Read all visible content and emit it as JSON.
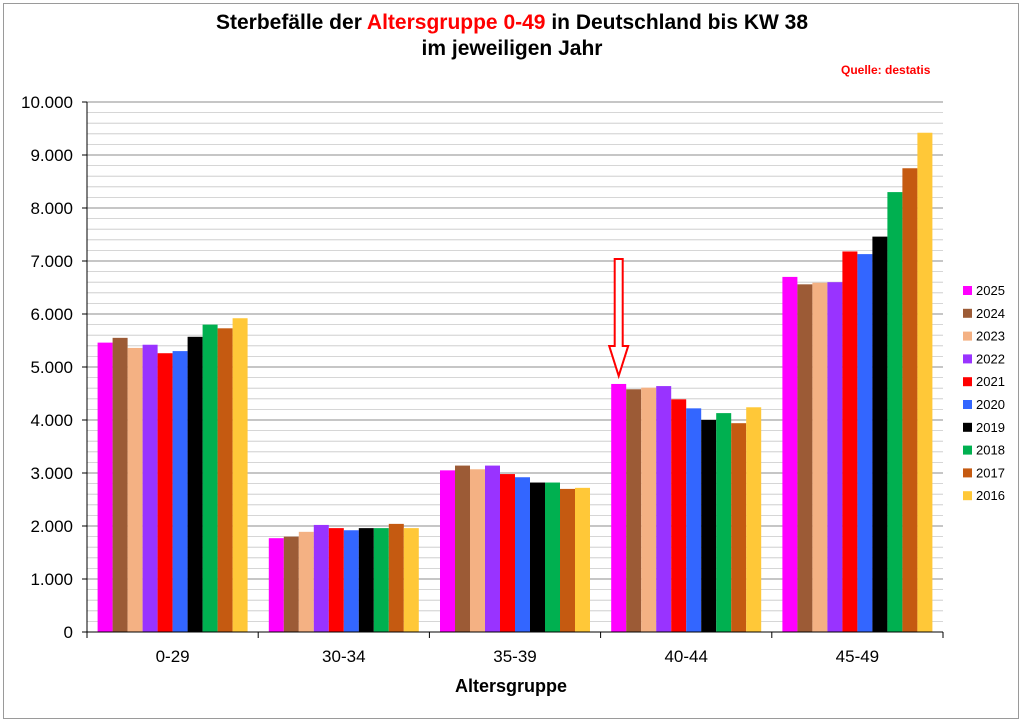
{
  "title": {
    "line1_pre": "Sterbefälle der ",
    "line1_highlight": "Altersgruppe 0-49",
    "line1_post": " in Deutschland bis KW 38",
    "line2": "im jeweiligen Jahr"
  },
  "source": "Quelle: destatis",
  "chart_data": {
    "type": "bar",
    "title": "Sterbefälle der Altersgruppe 0-49 in Deutschland bis KW 38 im jeweiligen Jahr",
    "xlabel": "Altersgruppe",
    "ylabel": "",
    "ylim": [
      0,
      10000
    ],
    "yticks": [
      0,
      1000,
      2000,
      3000,
      4000,
      5000,
      6000,
      7000,
      8000,
      9000,
      10000
    ],
    "ytick_labels": [
      "0",
      "1.000",
      "2.000",
      "3.000",
      "4.000",
      "5.000",
      "6.000",
      "7.000",
      "8.000",
      "9.000",
      "10.000"
    ],
    "categories": [
      "0-29",
      "30-34",
      "35-39",
      "40-44",
      "45-49"
    ],
    "grid": true,
    "legend_position": "right",
    "series": [
      {
        "name": "2025",
        "color": "#ff00ff",
        "values": [
          5460,
          1770,
          3050,
          4680,
          6700
        ]
      },
      {
        "name": "2024",
        "color": "#9c5b36",
        "values": [
          5550,
          1800,
          3140,
          4580,
          6560
        ]
      },
      {
        "name": "2023",
        "color": "#f4b183",
        "values": [
          5360,
          1890,
          3070,
          4610,
          6590
        ]
      },
      {
        "name": "2022",
        "color": "#9933ff",
        "values": [
          5420,
          2020,
          3140,
          4640,
          6600
        ]
      },
      {
        "name": "2021",
        "color": "#ff0000",
        "values": [
          5260,
          1960,
          2980,
          4390,
          7180
        ]
      },
      {
        "name": "2020",
        "color": "#3366ff",
        "values": [
          5300,
          1920,
          2920,
          4220,
          7130
        ]
      },
      {
        "name": "2019",
        "color": "#000000",
        "values": [
          5570,
          1960,
          2820,
          4000,
          7460
        ]
      },
      {
        "name": "2018",
        "color": "#00b050",
        "values": [
          5800,
          1960,
          2820,
          4130,
          8300
        ]
      },
      {
        "name": "2017",
        "color": "#c55a11",
        "values": [
          5730,
          2040,
          2700,
          3940,
          8750
        ]
      },
      {
        "name": "2016",
        "color": "#ffc838",
        "values": [
          5920,
          1960,
          2720,
          4240,
          9420
        ]
      }
    ],
    "annotation": {
      "type": "arrow",
      "color": "#ff0000",
      "pointing_to": "40-44 / 2025"
    }
  }
}
